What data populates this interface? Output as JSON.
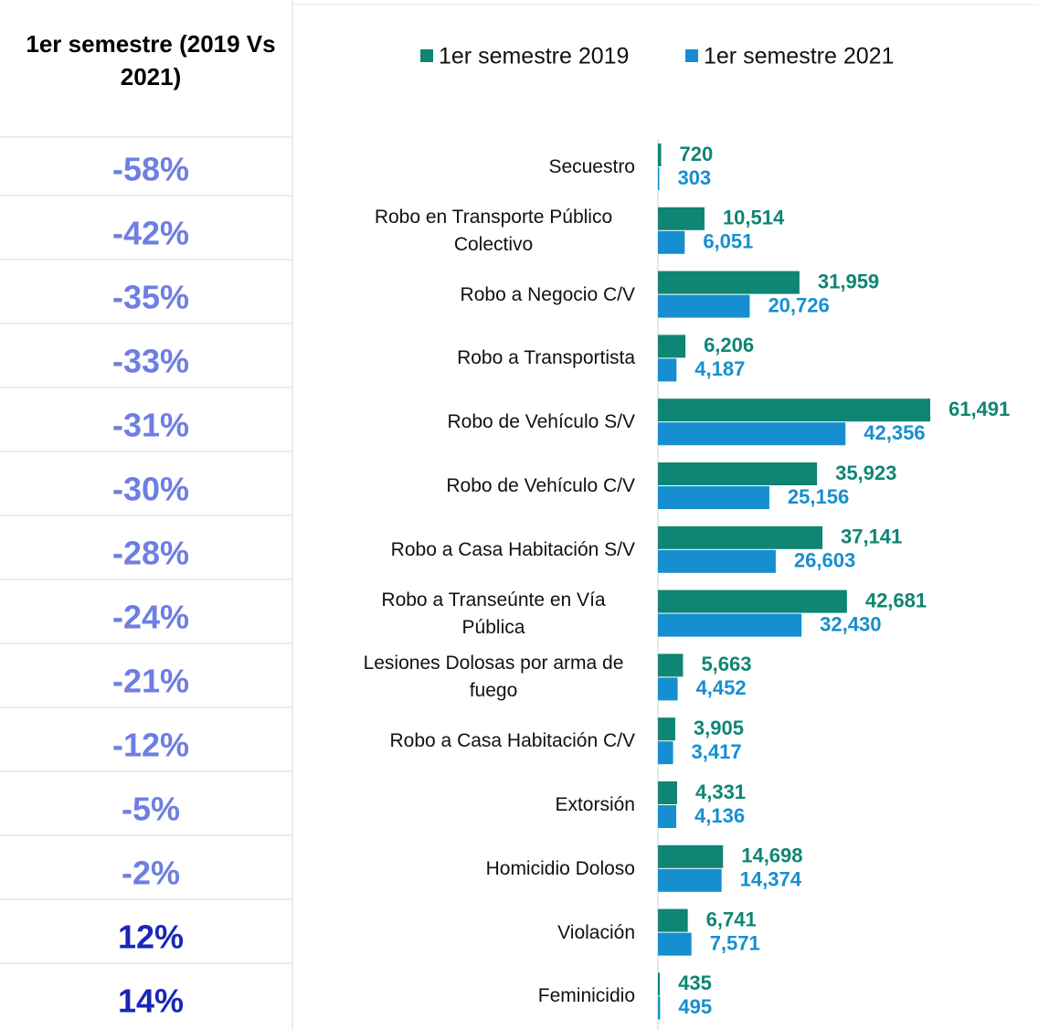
{
  "table": {
    "header": "1er semestre (2019 Vs 2021)",
    "rows": [
      "-58%",
      "-42%",
      "-35%",
      "-33%",
      "-31%",
      "-30%",
      "-28%",
      "-24%",
      "-21%",
      "-12%",
      "-5%",
      "-2%",
      "12%",
      "14%"
    ]
  },
  "chart_data": {
    "type": "hbar",
    "categories": [
      "Secuestro",
      "Robo en Transporte Público Colectivo",
      "Robo a Negocio C/V",
      "Robo a Transportista",
      "Robo de Vehículo S/V",
      "Robo de Vehículo C/V",
      "Robo a Casa Habitación S/V",
      "Robo a Transeúnte en Vía Pública",
      "Lesiones Dolosas por arma de fuego",
      "Robo a Casa Habitación C/V",
      "Extorsión",
      "Homicidio Doloso",
      "Violación",
      "Feminicidio"
    ],
    "series": [
      {
        "name": "1er semestre 2019",
        "color": "#0f8574",
        "values": [
          720,
          10514,
          31959,
          6206,
          61491,
          35923,
          37141,
          42681,
          5663,
          3905,
          4331,
          14698,
          6741,
          435
        ],
        "value_labels": [
          "720",
          "10,514",
          "31,959",
          "6,206",
          "61,491",
          "35,923",
          "37,141",
          "42,681",
          "5,663",
          "3,905",
          "4,331",
          "14,698",
          "6,741",
          "435"
        ]
      },
      {
        "name": "1er semestre 2021",
        "color": "#168fd0",
        "values": [
          303,
          6051,
          20726,
          4187,
          42356,
          25156,
          26603,
          32430,
          4452,
          3417,
          4136,
          14374,
          7571,
          495
        ],
        "value_labels": [
          "303",
          "6,051",
          "20,726",
          "4,187",
          "42,356",
          "25,156",
          "26,603",
          "32,430",
          "4,452",
          "3,417",
          "4,136",
          "14,374",
          "7,571",
          "495"
        ]
      }
    ],
    "xlim": [
      0,
      65000
    ]
  }
}
